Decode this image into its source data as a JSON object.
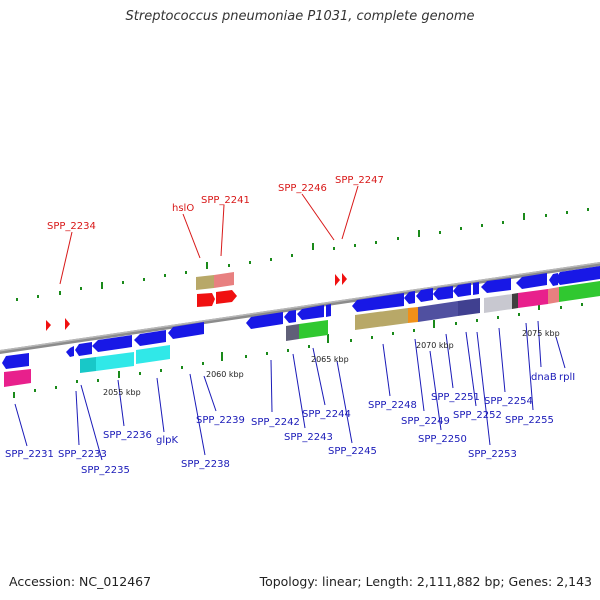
{
  "title": "Streptococcus pneumoniae P1031, complete genome",
  "footer": {
    "accession": "Accession: NC_012467",
    "topology": "Topology: linear; Length: 2,111,882 bp; Genes: 2,143"
  },
  "colors": {
    "axis": "#8c8c8c",
    "tick": "#1a8a1a",
    "label_blue": "#1a1ab8",
    "label_red": "#d81818",
    "gene_blue": "#1818e6",
    "gene_red": "#f01010"
  },
  "scale_labels": [
    {
      "text": "2055 kbp"
    },
    {
      "text": "2060 kbp"
    },
    {
      "text": "2065 kbp"
    },
    {
      "text": "2070 kbp"
    },
    {
      "text": "2075 kbp"
    }
  ],
  "top_labels": [
    {
      "text": "SPP_2234"
    },
    {
      "text": "hslO"
    },
    {
      "text": "SPP_2241"
    },
    {
      "text": "SPP_2246"
    },
    {
      "text": "SPP_2247"
    }
  ],
  "bottom_labels": [
    {
      "text": "SPP_2231"
    },
    {
      "text": "SPP_2233"
    },
    {
      "text": "SPP_2235"
    },
    {
      "text": "SPP_2236"
    },
    {
      "text": "glpK"
    },
    {
      "text": "SPP_2238"
    },
    {
      "text": "SPP_2239"
    },
    {
      "text": "SPP_2242"
    },
    {
      "text": "SPP_2243"
    },
    {
      "text": "SPP_2244"
    },
    {
      "text": "SPP_2245"
    },
    {
      "text": "SPP_2248"
    },
    {
      "text": "SPP_2249"
    },
    {
      "text": "SPP_2250"
    },
    {
      "text": "SPP_2251"
    },
    {
      "text": "SPP_2252"
    },
    {
      "text": "SPP_2253"
    },
    {
      "text": "SPP_2254"
    },
    {
      "text": "SPP_2255"
    },
    {
      "text": "dnaB"
    },
    {
      "text": "rplI"
    }
  ]
}
